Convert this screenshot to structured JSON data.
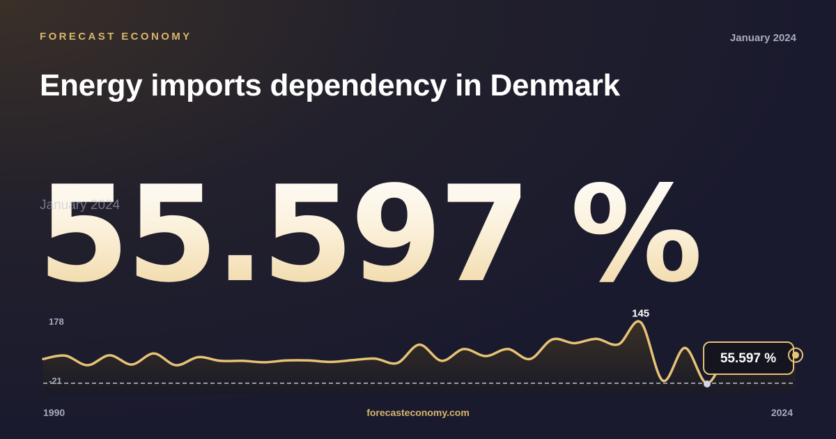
{
  "header": {
    "brand": "FORECAST ECONOMY",
    "date": "January 2024",
    "title": "Energy imports dependency in Denmark"
  },
  "headline": {
    "value": "55.597 %",
    "date_overlay": "January 2024"
  },
  "footer": {
    "x_start": "1990",
    "x_end": "2024",
    "url": "forecasteconomy.com"
  },
  "colors": {
    "accent": "#e8c375",
    "background": "#1a1a2e",
    "muted_text": "#a9a9bf"
  },
  "chart_data": {
    "type": "area",
    "x": [
      1990,
      1991,
      1992,
      1993,
      1994,
      1995,
      1996,
      1997,
      1998,
      1999,
      2000,
      2001,
      2002,
      2003,
      2004,
      2005,
      2006,
      2007,
      2008,
      2009,
      2010,
      2011,
      2012,
      2013,
      2014,
      2015,
      2016,
      2017,
      2018,
      2019,
      2020,
      2021,
      2022,
      2023,
      2024
    ],
    "y": [
      45,
      54,
      28,
      55,
      30,
      60,
      28,
      50,
      40,
      40,
      36,
      41,
      41,
      37,
      42,
      46,
      34,
      84,
      40,
      72,
      53,
      72,
      45,
      98,
      88,
      100,
      85,
      145,
      -14,
      75,
      -21,
      70,
      80,
      62,
      55.597
    ],
    "ylim": [
      -21,
      178
    ],
    "y_top_label": "178",
    "y_bottom_label": "-21",
    "max_label": "145",
    "latest_label": "55.597 %",
    "xlabel": "",
    "ylabel": "",
    "grid": false
  }
}
